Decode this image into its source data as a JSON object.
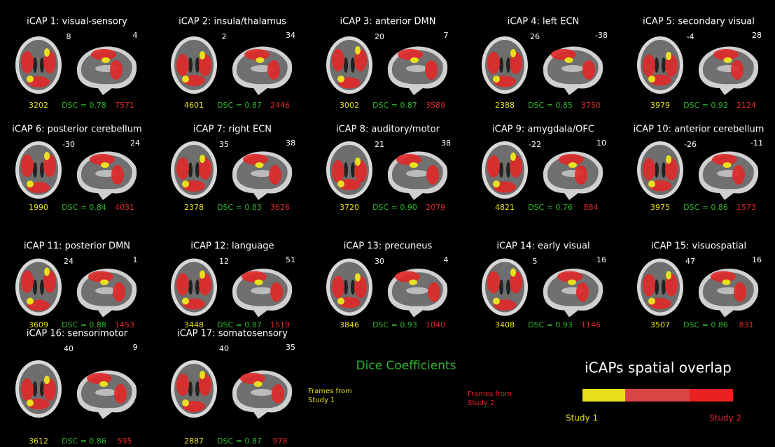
{
  "panels": [
    {
      "title": "iCAP 1: visual-sensory",
      "axial": "8",
      "sagittal": "4",
      "frames1": "3202",
      "dsc": "DSC = 0.78",
      "frames2": "7571"
    },
    {
      "title": "iCAP 2: insula/thalamus",
      "axial": "2",
      "sagittal": "34",
      "frames1": "4601",
      "dsc": "DSC = 0.87",
      "frames2": "2446"
    },
    {
      "title": "iCAP 3: anterior DMN",
      "axial": "20",
      "sagittal": "7",
      "frames1": "3002",
      "dsc": "DSC = 0.87",
      "frames2": "3589"
    },
    {
      "title": "iCAP 4: left ECN",
      "axial": "26",
      "sagittal": "-38",
      "frames1": "2388",
      "dsc": "DSC = 0.85",
      "frames2": "3750"
    },
    {
      "title": "iCAP 5: secondary visual",
      "axial": "-4",
      "sagittal": "28",
      "frames1": "3979",
      "dsc": "DSC = 0.92",
      "frames2": "2124"
    },
    {
      "title": "iCAP 6: posterior cerebellum",
      "axial": "-30",
      "sagittal": "24",
      "frames1": "1990",
      "dsc": "DSC = 0.84",
      "frames2": "4031"
    },
    {
      "title": "iCAP 7: right ECN",
      "axial": "35",
      "sagittal": "38",
      "frames1": "2378",
      "dsc": "DSC = 0.83",
      "frames2": "3626"
    },
    {
      "title": "iCAP 8: auditory/motor",
      "axial": "21",
      "sagittal": "38",
      "frames1": "3720",
      "dsc": "DSC = 0.90",
      "frames2": "2079"
    },
    {
      "title": "iCAP 9: amygdala/OFC",
      "axial": "-22",
      "sagittal": "10",
      "frames1": "4821",
      "dsc": "DSC = 0.76",
      "frames2": "884"
    },
    {
      "title": "iCAP 10: anterior cerebellum",
      "axial": "-26",
      "sagittal": "-11",
      "frames1": "3975",
      "dsc": "DSC = 0.86",
      "frames2": "1573"
    },
    {
      "title": "iCAP 11: posterior DMN",
      "axial": "24",
      "sagittal": "1",
      "frames1": "3609",
      "dsc": "DSC = 0.88",
      "frames2": "1453"
    },
    {
      "title": "iCAP 12: language",
      "axial": "12",
      "sagittal": "51",
      "frames1": "3448",
      "dsc": "DSC = 0.87",
      "frames2": "1519"
    },
    {
      "title": "iCAP 13: precuneus",
      "axial": "30",
      "sagittal": "4",
      "frames1": "3846",
      "dsc": "DSC = 0.93",
      "frames2": "1040"
    },
    {
      "title": "iCAP 14: early visual",
      "axial": "5",
      "sagittal": "16",
      "frames1": "3408",
      "dsc": "DSC = 0.93",
      "frames2": "1146"
    },
    {
      "title": "iCAP 15: visuospatial",
      "axial": "47",
      "sagittal": "16",
      "frames1": "3507",
      "dsc": "DSC = 0.86",
      "frames2": "831"
    },
    {
      "title": "iCAP 16: sensorimotor",
      "axial": "40",
      "sagittal": "9",
      "frames1": "3612",
      "dsc": "DSC = 0.86",
      "frames2": "595"
    },
    {
      "title": "iCAP 17: somatosensory",
      "axial": "40",
      "sagittal": "35",
      "frames1": "2887",
      "dsc": "DSC = 0.87",
      "frames2": "978"
    }
  ],
  "legend": {
    "dice_title": "Dice Coefficients",
    "frames_study1": [
      "Frames from",
      "Study 1"
    ],
    "frames_study2": [
      "Frames from",
      "Study 2"
    ],
    "overlap_title": "iCAPs spatial overlap",
    "study1": "Study 1",
    "study2": "Study 2"
  }
}
